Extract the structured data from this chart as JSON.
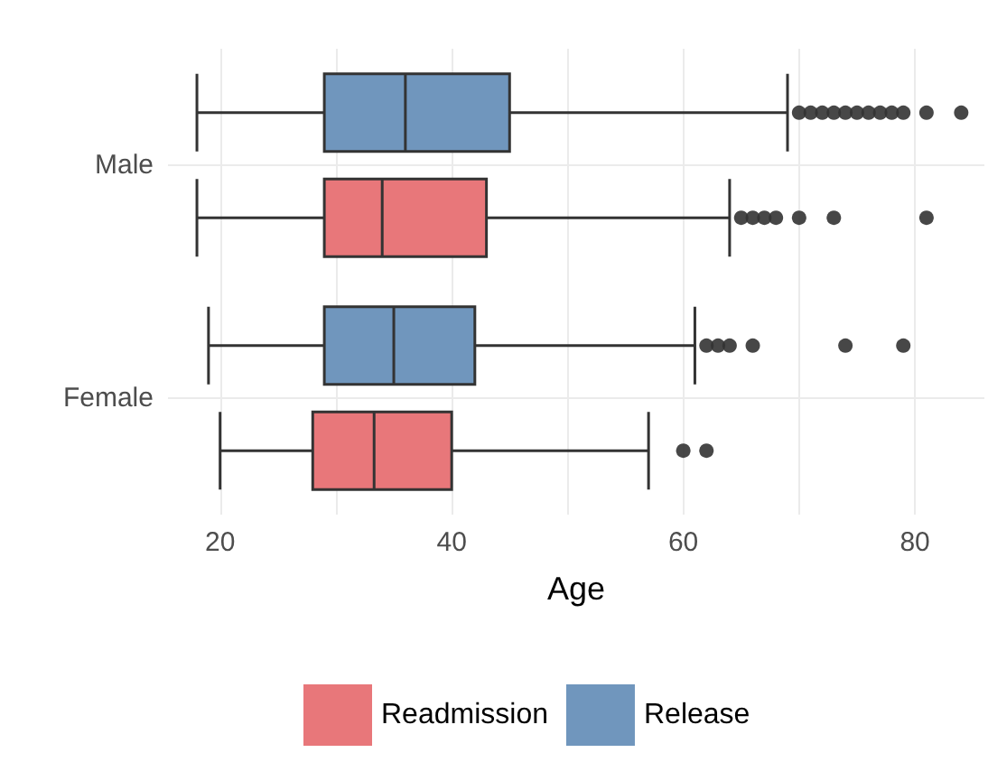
{
  "chart_data": {
    "type": "box",
    "orientation": "horizontal",
    "xlabel": "Age",
    "categories": [
      "Male",
      "Female"
    ],
    "xlim": [
      15.5,
      86
    ],
    "xticks": [
      20,
      {
        "value": 30,
        "label": null
      },
      40,
      {
        "value": 50,
        "label": null
      },
      60,
      {
        "value": 70,
        "label": null
      },
      80
    ],
    "grid": true,
    "legend": "bottom",
    "series": [
      {
        "name": "Readmission",
        "color": "#e8777a",
        "boxes": [
          {
            "low": 18,
            "q1": 29,
            "median": 34,
            "q3": 43,
            "high": 64,
            "outliers": [
              65,
              66,
              67,
              68,
              70,
              73,
              81
            ]
          },
          {
            "low": 20,
            "q1": 28,
            "median": 33.3,
            "q3": 40,
            "high": 57,
            "outliers": [
              60,
              62
            ]
          }
        ]
      },
      {
        "name": "Release",
        "color": "#7096bd",
        "boxes": [
          {
            "low": 18,
            "q1": 29,
            "median": 36,
            "q3": 45,
            "high": 69,
            "outliers": [
              70,
              71,
              72,
              73,
              74,
              75,
              76,
              77,
              78,
              79,
              81,
              84
            ]
          },
          {
            "low": 19,
            "q1": 29,
            "median": 35,
            "q3": 42,
            "high": 61,
            "outliers": [
              62,
              63,
              64,
              66,
              74,
              79
            ]
          }
        ]
      }
    ]
  }
}
